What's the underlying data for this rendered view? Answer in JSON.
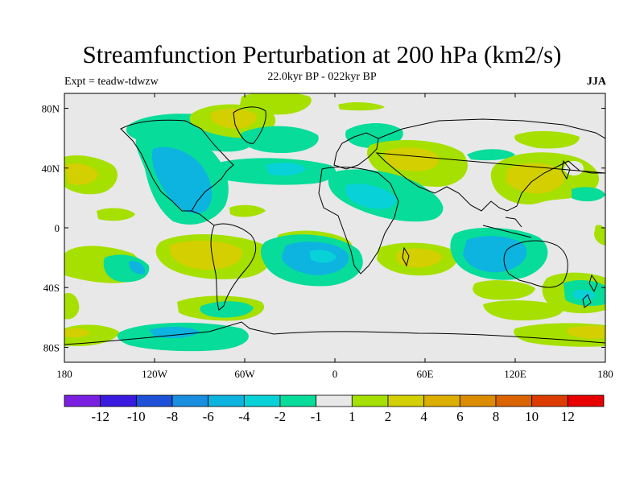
{
  "header": {
    "title": "Streamfunction Perturbation at 200 hPa (km2/s)",
    "subtitle": "22.0kyr BP - 022kyr BP",
    "experiment": "Expt = teadw-tdwzw",
    "season": "JJA"
  },
  "axes": {
    "lat_ticks": [
      {
        "label": "80N",
        "value": 80
      },
      {
        "label": "40N",
        "value": 40
      },
      {
        "label": "0",
        "value": 0
      },
      {
        "label": "40S",
        "value": -40
      },
      {
        "label": "80S",
        "value": -80
      }
    ],
    "lon_ticks": [
      {
        "label": "180",
        "value": -180
      },
      {
        "label": "120W",
        "value": -120
      },
      {
        "label": "60W",
        "value": -60
      },
      {
        "label": "0",
        "value": 0
      },
      {
        "label": "60E",
        "value": 60
      },
      {
        "label": "120E",
        "value": 120
      },
      {
        "label": "180",
        "value": 180
      }
    ],
    "lat_range": [
      -90,
      90
    ],
    "lon_range": [
      -180,
      180
    ]
  },
  "colorbar": {
    "colors": [
      "#7b1fe0",
      "#3b1adf",
      "#1e50d8",
      "#1a8ee0",
      "#0db4e0",
      "#08d2d8",
      "#07dc9a",
      "#e8e8e8",
      "#a6e000",
      "#d4cf00",
      "#dcae00",
      "#dc8c00",
      "#dc6400",
      "#dc3c00",
      "#e80000"
    ],
    "labels": [
      "-12",
      "-10",
      "-8",
      "-6",
      "-4",
      "-2",
      "-1",
      "1",
      "2",
      "4",
      "6",
      "8",
      "10",
      "12"
    ]
  },
  "colors": {
    "background": "#e8e8e8",
    "neg1": "#07dc9a",
    "neg2": "#08d2d8",
    "neg3": "#0db4e0",
    "pos1": "#a6e000",
    "pos2": "#d4cf00",
    "pos3": "#dcae00"
  }
}
